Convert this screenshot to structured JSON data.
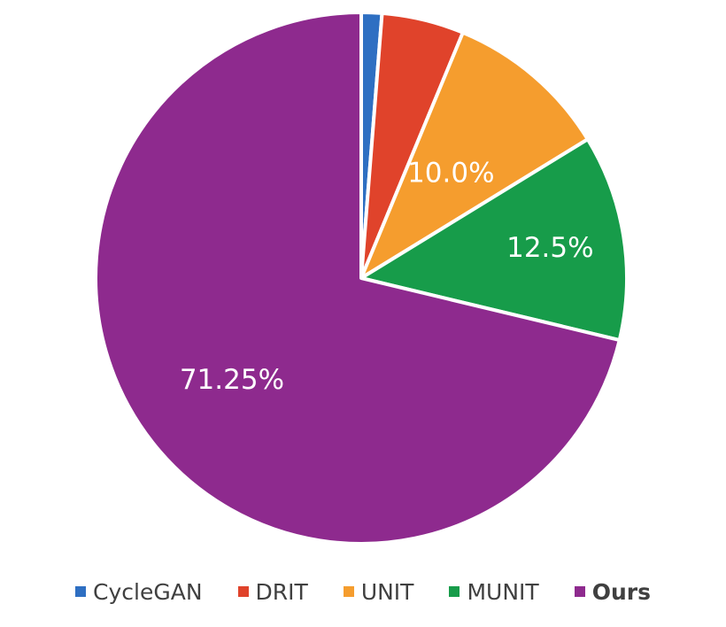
{
  "chart_data": {
    "type": "pie",
    "title": "",
    "categories": [
      "CycleGAN",
      "DRIT",
      "UNIT",
      "MUNIT",
      "Ours"
    ],
    "values": [
      1.25,
      5.0,
      10.0,
      12.5,
      71.25
    ],
    "data_labels": [
      "",
      "",
      "10.0%",
      "12.5%",
      "71.25%"
    ],
    "colors": [
      "#2E6FC2",
      "#E0432B",
      "#F59D2E",
      "#179C4A",
      "#8E2A8E"
    ],
    "start_angle": "12 o'clock, clockwise",
    "legend_position": "bottom",
    "legend_bold": [
      "Ours"
    ]
  }
}
